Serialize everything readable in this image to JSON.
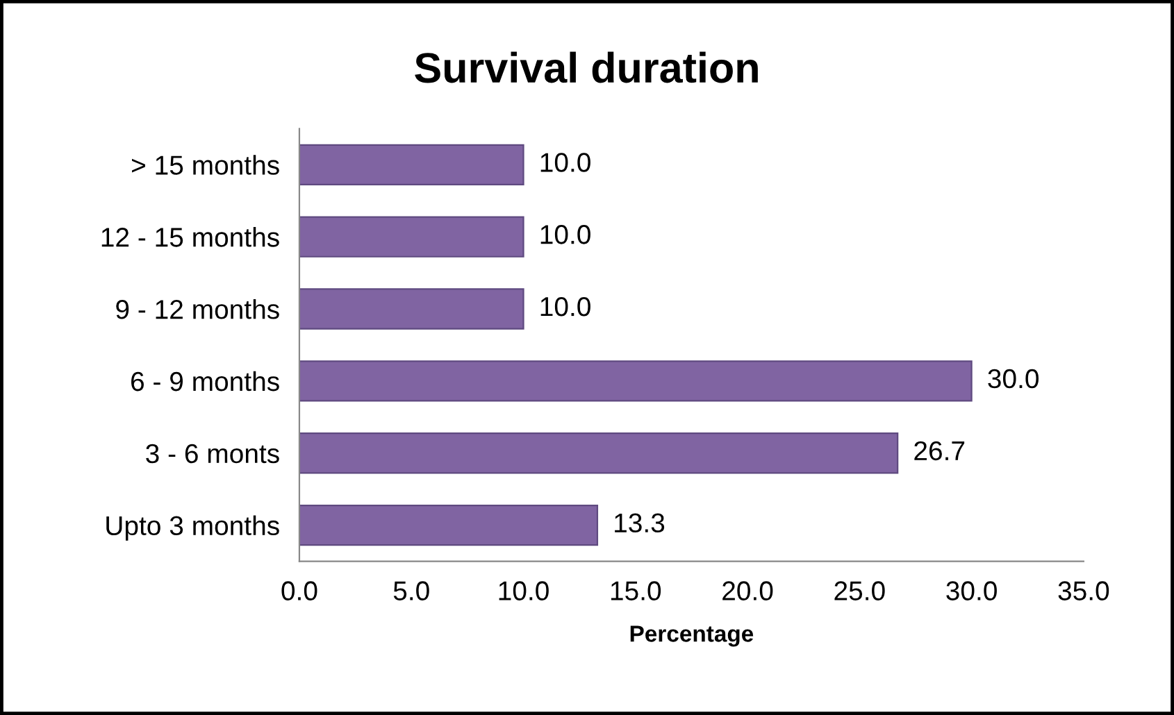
{
  "chart_data": {
    "type": "bar",
    "orientation": "horizontal",
    "title": "Survival duration",
    "xlabel": "Percentage",
    "categories": [
      "> 15 months",
      "12 - 15 months",
      "9 - 12 months",
      "6 - 9 months",
      "3 - 6 monts",
      "Upto 3 months"
    ],
    "values": [
      10.0,
      10.0,
      10.0,
      30.0,
      26.7,
      13.3
    ],
    "value_labels": [
      "10.0",
      "10.0",
      "10.0",
      "30.0",
      "26.7",
      "13.3"
    ],
    "color": "#8064a2",
    "xlim": [
      0,
      35
    ],
    "xticks": [
      {
        "value": 0,
        "label": "0.0"
      },
      {
        "value": 5,
        "label": "5.0"
      },
      {
        "value": 10,
        "label": "10.0"
      },
      {
        "value": 15,
        "label": "15.0"
      },
      {
        "value": 20,
        "label": "20.0"
      },
      {
        "value": 25,
        "label": "25.0"
      },
      {
        "value": 30,
        "label": "30.0"
      },
      {
        "value": 35,
        "label": "35.0"
      }
    ],
    "grid": false,
    "legend": false
  }
}
